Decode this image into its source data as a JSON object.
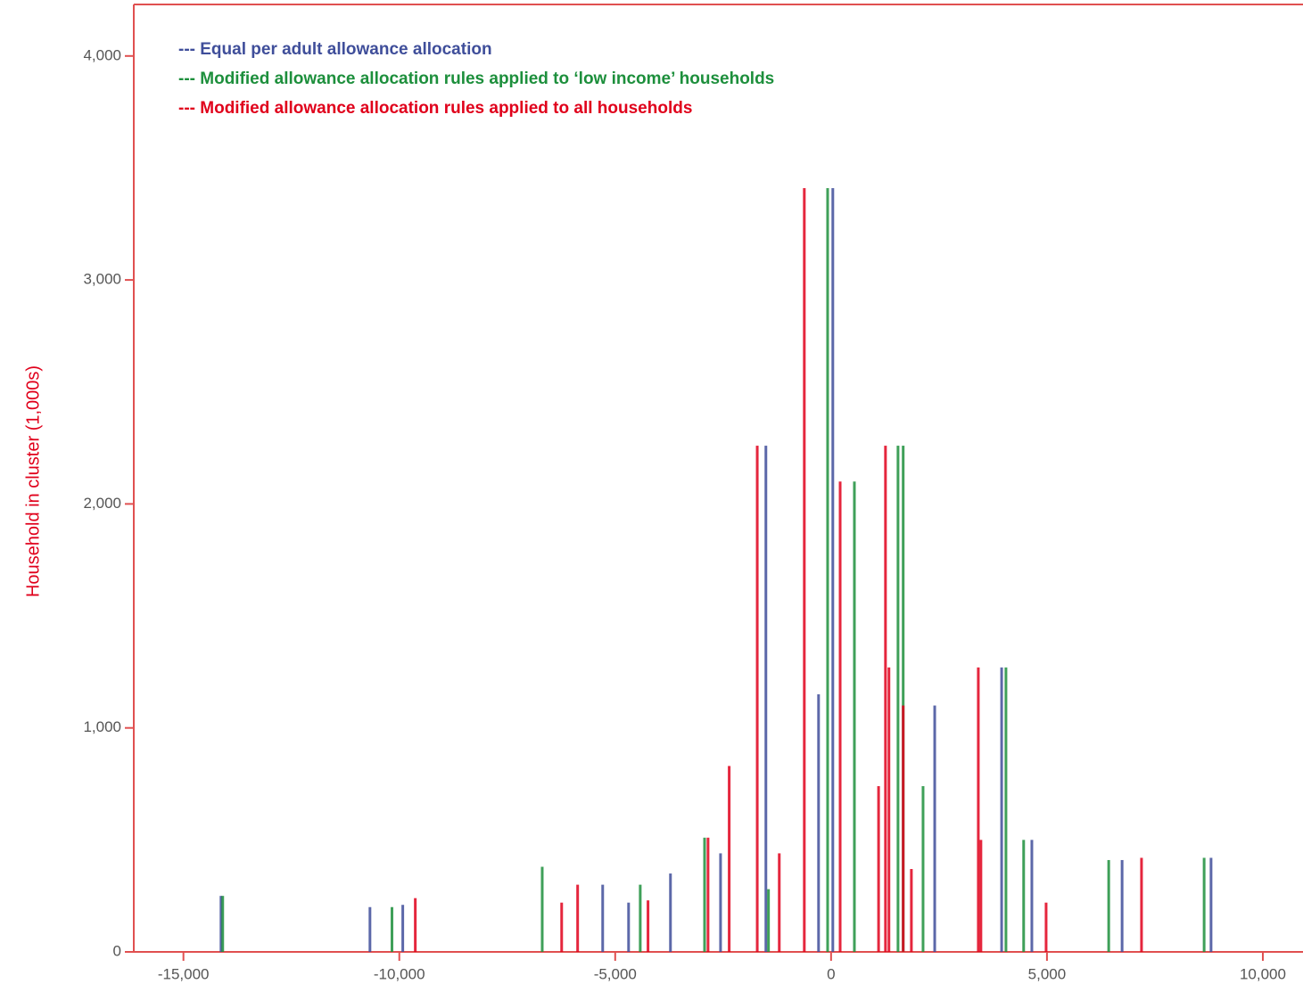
{
  "chart_data": {
    "type": "spike",
    "y_label": "Household in cluster (1,000s)",
    "xlim": [
      -16150,
      10930
    ],
    "ylim": [
      0,
      4230
    ],
    "xticks": [
      {
        "value": -15000,
        "label": "-15,000"
      },
      {
        "value": -10000,
        "label": "-10,000"
      },
      {
        "value": -5000,
        "label": "-5,000"
      },
      0,
      {
        "value": 5000,
        "label": "5,000"
      },
      {
        "value": 10000,
        "label": "10,000"
      }
    ],
    "yticks": [
      0,
      {
        "value": 1000,
        "label": "1,000"
      },
      {
        "value": 2000,
        "label": "2,000"
      },
      {
        "value": 3000,
        "label": "3,000"
      },
      {
        "value": 4000,
        "label": "4,000"
      }
    ],
    "series": [
      {
        "name": "--- Equal per adult allowance allocation",
        "color": "#3f4e9a",
        "x": [
          -14130,
          -10680,
          -9920,
          -5290,
          -4690,
          -3720,
          -2560,
          -1510,
          -290,
          40,
          2400,
          3950,
          4650,
          6740,
          8800
        ],
        "values": [
          250,
          200,
          210,
          300,
          220,
          350,
          440,
          2260,
          1150,
          3410,
          1100,
          1270,
          500,
          410,
          420
        ]
      },
      {
        "name": "--- Modified allowance allocation rules applied to ‘low income’ households",
        "color": "#1d8f3c",
        "x": [
          -14090,
          -10170,
          -6690,
          -4420,
          -2930,
          -1450,
          -80,
          540,
          1550,
          1670,
          2130,
          4050,
          4460,
          6430,
          8640
        ],
        "values": [
          250,
          200,
          380,
          300,
          510,
          280,
          3410,
          2100,
          2260,
          2260,
          740,
          1270,
          500,
          410,
          420
        ]
      },
      {
        "name": "---  Modified allowance allocation rules applied to all households",
        "color": "#e0001b",
        "x": [
          -9630,
          -6240,
          -5870,
          -4240,
          -2850,
          -2360,
          -1710,
          -1200,
          -620,
          210,
          1100,
          1260,
          1340,
          1670,
          1860,
          3410,
          3470,
          4980,
          7190
        ],
        "values": [
          240,
          220,
          300,
          230,
          510,
          830,
          2260,
          440,
          3410,
          2100,
          740,
          2260,
          1270,
          1100,
          370,
          1270,
          500,
          220,
          420
        ]
      }
    ]
  }
}
